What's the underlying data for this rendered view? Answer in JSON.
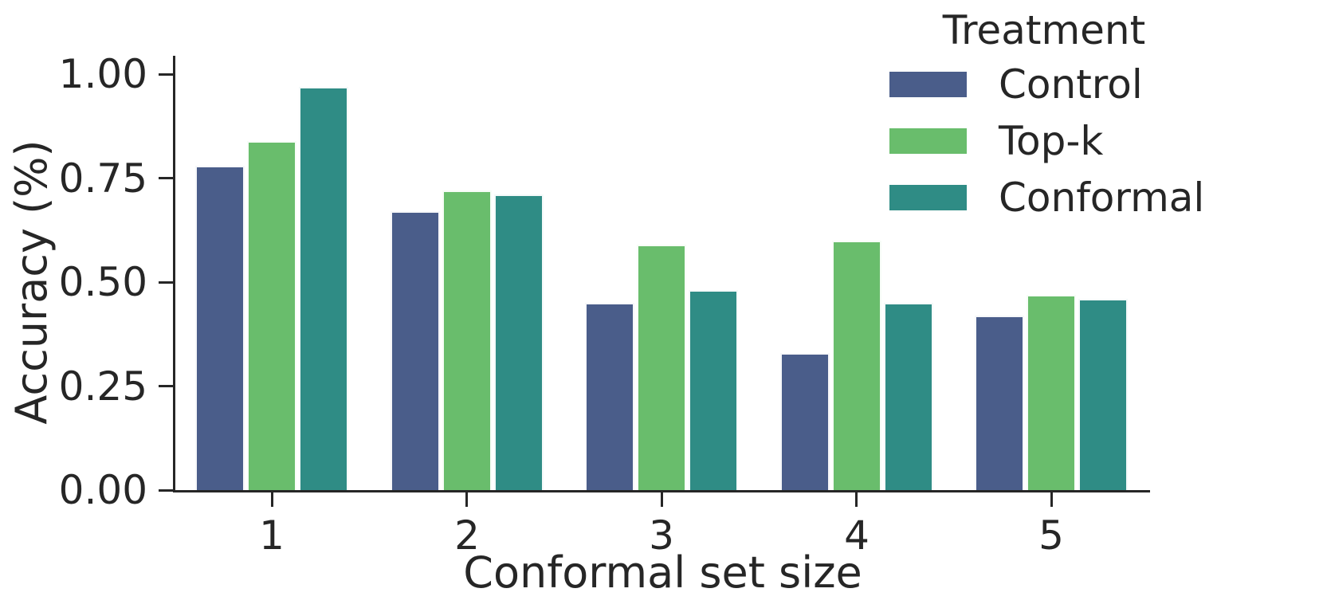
{
  "chart_data": {
    "type": "bar",
    "title": "",
    "xlabel": "Conformal set size",
    "ylabel": "Accuracy (%)",
    "categories": [
      "1",
      "2",
      "3",
      "4",
      "5"
    ],
    "series": [
      {
        "name": "Control",
        "color": "#4A5D8A",
        "values": [
          0.78,
          0.67,
          0.45,
          0.33,
          0.42
        ]
      },
      {
        "name": "Top-k",
        "color": "#69BD6C",
        "values": [
          0.84,
          0.72,
          0.59,
          0.6,
          0.47
        ]
      },
      {
        "name": "Conformal",
        "color": "#2F8C85",
        "values": [
          0.97,
          0.71,
          0.48,
          0.45,
          0.46
        ]
      }
    ],
    "yticks": [
      "0.00",
      "0.25",
      "0.50",
      "0.75",
      "1.00"
    ],
    "ytick_values": [
      0.0,
      0.25,
      0.5,
      0.75,
      1.0
    ],
    "ylim": [
      0.0,
      1.0
    ],
    "grid": false,
    "legend": {
      "title": "Treatment",
      "position": "upper right"
    }
  },
  "style": {
    "text_color": "#262626",
    "spine_color": "#262626",
    "bar_edge_color": "#ffffff",
    "background": "#ffffff"
  }
}
